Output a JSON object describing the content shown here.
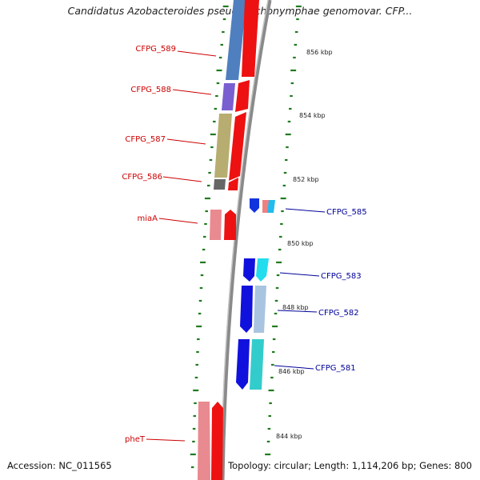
{
  "title": "Candidatus Azobacteroides pseudotrichonymphae genomovar. CFP...",
  "footer": {
    "accession": "Accession: NC_011565",
    "summary": "Topology: circular; Length: 1,114,206 bp; Genes: 800"
  },
  "colors": {
    "left_label": "#cc0000",
    "right_label": "#000099",
    "backbone": "#8a8a8a",
    "tick": "#1f7a1f"
  },
  "scale_labels": [
    "856 kbp",
    "854 kbp",
    "852 kbp",
    "850 kbp",
    "848 kbp",
    "846 kbp",
    "844 kbp"
  ],
  "left_labels": [
    "CFPG_589",
    "CFPG_588",
    "CFPG_587",
    "CFPG_586",
    "miaA",
    "pheT"
  ],
  "right_labels": [
    "CFPG_585",
    "CFPG_583",
    "CFPG_582",
    "CFPG_581"
  ]
}
